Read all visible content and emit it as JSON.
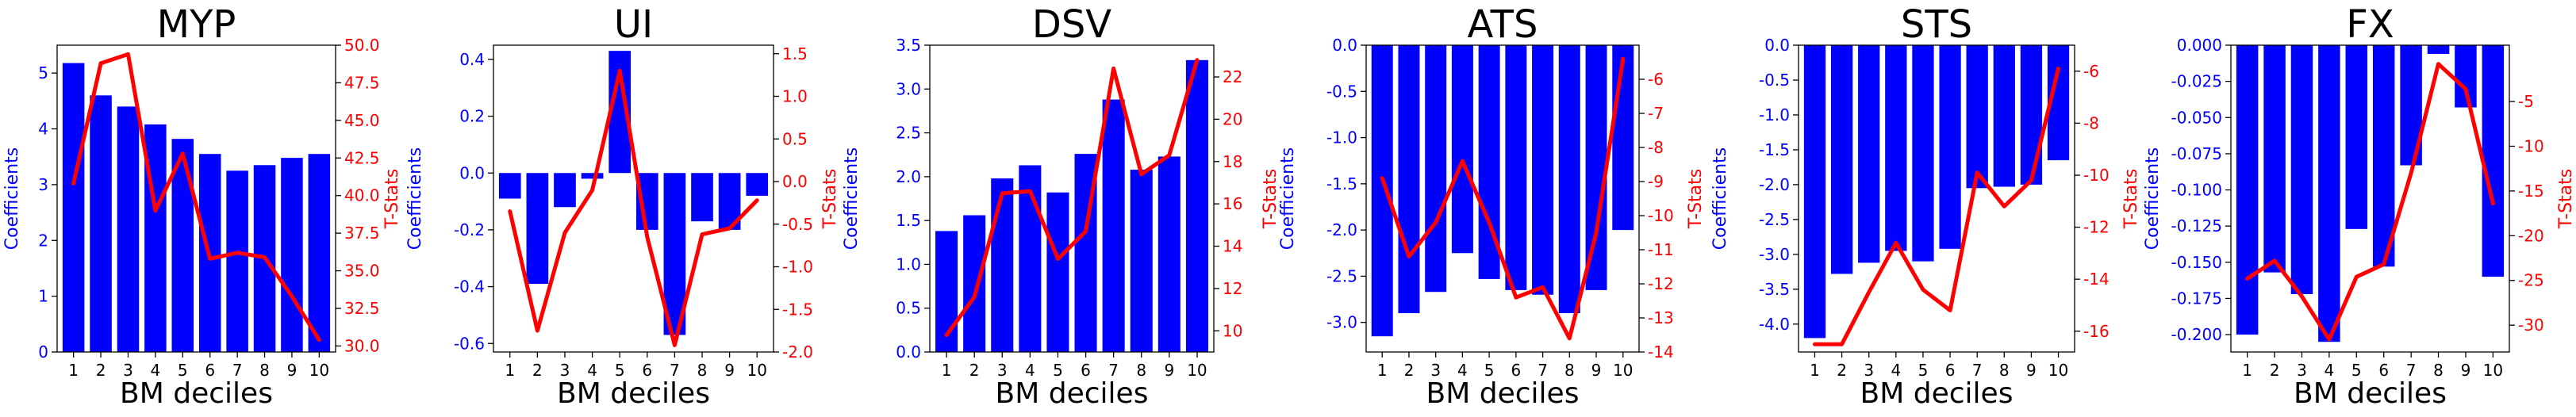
{
  "figure": {
    "xlabel": "BM deciles",
    "ylabel_left": "Coefficients",
    "ylabel_right": "T-Stats"
  },
  "colors": {
    "bars": "#0000ff",
    "line": "#ff0000",
    "left_axis": "#0000ff",
    "right_axis": "#ff0000",
    "text": "#000000"
  },
  "chart_data": [
    {
      "type": "bar+line",
      "title": "MYP",
      "categories": [
        "1",
        "2",
        "3",
        "4",
        "5",
        "6",
        "7",
        "8",
        "9",
        "10"
      ],
      "coefficients": [
        5.18,
        4.6,
        4.4,
        4.08,
        3.82,
        3.55,
        3.25,
        3.35,
        3.48,
        3.55
      ],
      "tstats": [
        40.8,
        48.8,
        49.4,
        39.0,
        42.8,
        35.8,
        36.2,
        35.9,
        33.3,
        30.4
      ],
      "ylim_left": [
        0,
        5.5
      ],
      "ylim_right": [
        29.6,
        50.0
      ],
      "yticks_left": [
        "0",
        "1",
        "2",
        "3",
        "4",
        "5"
      ],
      "yticks_right": [
        "30.0",
        "32.5",
        "35.0",
        "37.5",
        "40.0",
        "42.5",
        "45.0",
        "47.5",
        "50.0"
      ]
    },
    {
      "type": "bar+line",
      "title": "UI",
      "categories": [
        "1",
        "2",
        "3",
        "4",
        "5",
        "6",
        "7",
        "8",
        "9",
        "10"
      ],
      "coefficients": [
        -0.09,
        -0.39,
        -0.12,
        -0.02,
        0.43,
        -0.2,
        -0.57,
        -0.17,
        -0.2,
        -0.08
      ],
      "tstats": [
        -0.35,
        -1.75,
        -0.6,
        -0.1,
        1.3,
        -0.65,
        -1.92,
        -0.62,
        -0.55,
        -0.22
      ],
      "ylim_left": [
        -0.63,
        0.45
      ],
      "ylim_right": [
        -2.0,
        1.6
      ],
      "yticks_left": [
        "-0.6",
        "-0.4",
        "-0.2",
        "0.0",
        "0.2",
        "0.4"
      ],
      "yticks_right": [
        "-2.0",
        "-1.5",
        "-1.0",
        "-0.5",
        "0.0",
        "0.5",
        "1.0",
        "1.5"
      ]
    },
    {
      "type": "bar+line",
      "title": "DSV",
      "categories": [
        "1",
        "2",
        "3",
        "4",
        "5",
        "6",
        "7",
        "8",
        "9",
        "10"
      ],
      "coefficients": [
        1.38,
        1.56,
        1.98,
        2.13,
        1.82,
        2.26,
        2.88,
        2.08,
        2.23,
        3.33
      ],
      "tstats": [
        9.8,
        11.6,
        16.5,
        16.6,
        13.4,
        14.7,
        22.4,
        17.4,
        18.3,
        22.8
      ],
      "ylim_left": [
        0,
        3.5
      ],
      "ylim_right": [
        9.0,
        23.5
      ],
      "yticks_left": [
        "0.0",
        "0.5",
        "1.0",
        "1.5",
        "2.0",
        "2.5",
        "3.0",
        "3.5"
      ],
      "yticks_right": [
        "10",
        "12",
        "14",
        "16",
        "18",
        "20",
        "22"
      ]
    },
    {
      "type": "bar+line",
      "title": "ATS",
      "categories": [
        "1",
        "2",
        "3",
        "4",
        "5",
        "6",
        "7",
        "8",
        "9",
        "10"
      ],
      "coefficients": [
        -3.15,
        -2.9,
        -2.67,
        -2.25,
        -2.53,
        -2.65,
        -2.7,
        -2.9,
        -2.65,
        -2.0
      ],
      "tstats": [
        -8.9,
        -11.2,
        -10.2,
        -8.4,
        -10.2,
        -12.4,
        -12.1,
        -13.6,
        -10.5,
        -5.4
      ],
      "ylim_left": [
        -3.32,
        0
      ],
      "ylim_right": [
        -14.0,
        -5.0
      ],
      "yticks_left": [
        "-3.0",
        "-2.5",
        "-2.0",
        "-1.5",
        "-1.0",
        "-0.5",
        "0.0"
      ],
      "yticks_right": [
        "-14",
        "-13",
        "-12",
        "-11",
        "-10",
        "-9",
        "-8",
        "-7",
        "-6"
      ]
    },
    {
      "type": "bar+line",
      "title": "STS",
      "categories": [
        "1",
        "2",
        "3",
        "4",
        "5",
        "6",
        "7",
        "8",
        "9",
        "10"
      ],
      "coefficients": [
        -4.2,
        -3.28,
        -3.12,
        -2.95,
        -3.1,
        -2.92,
        -2.05,
        -2.03,
        -2.0,
        -1.65
      ],
      "tstats": [
        -16.5,
        -16.5,
        -14.5,
        -12.6,
        -14.4,
        -15.2,
        -9.9,
        -11.2,
        -10.2,
        -5.9
      ],
      "ylim_left": [
        -4.4,
        0
      ],
      "ylim_right": [
        -16.8,
        -5.0
      ],
      "yticks_left": [
        "-4.0",
        "-3.5",
        "-3.0",
        "-2.5",
        "-2.0",
        "-1.5",
        "-1.0",
        "-0.5",
        "0.0"
      ],
      "yticks_right": [
        "-16",
        "-14",
        "-12",
        "-10",
        "-8",
        "-6"
      ]
    },
    {
      "type": "bar+line",
      "title": "FX",
      "categories": [
        "1",
        "2",
        "3",
        "4",
        "5",
        "6",
        "7",
        "8",
        "9",
        "10"
      ],
      "coefficients": [
        -0.2,
        -0.157,
        -0.172,
        -0.205,
        -0.127,
        -0.153,
        -0.083,
        -0.006,
        -0.043,
        -0.16
      ],
      "tstats": [
        -24.8,
        -22.8,
        -26.8,
        -31.6,
        -24.6,
        -23.2,
        -13.0,
        -0.8,
        -3.6,
        -16.4
      ],
      "ylim_left": [
        -0.212,
        0.0
      ],
      "ylim_right": [
        -33.0,
        1.3
      ],
      "yticks_left": [
        "-0.200",
        "-0.175",
        "-0.150",
        "-0.125",
        "-0.100",
        "-0.075",
        "-0.050",
        "-0.025",
        "0.000"
      ],
      "yticks_right": [
        "-30",
        "-25",
        "-20",
        "-15",
        "-10",
        "-5"
      ]
    }
  ]
}
